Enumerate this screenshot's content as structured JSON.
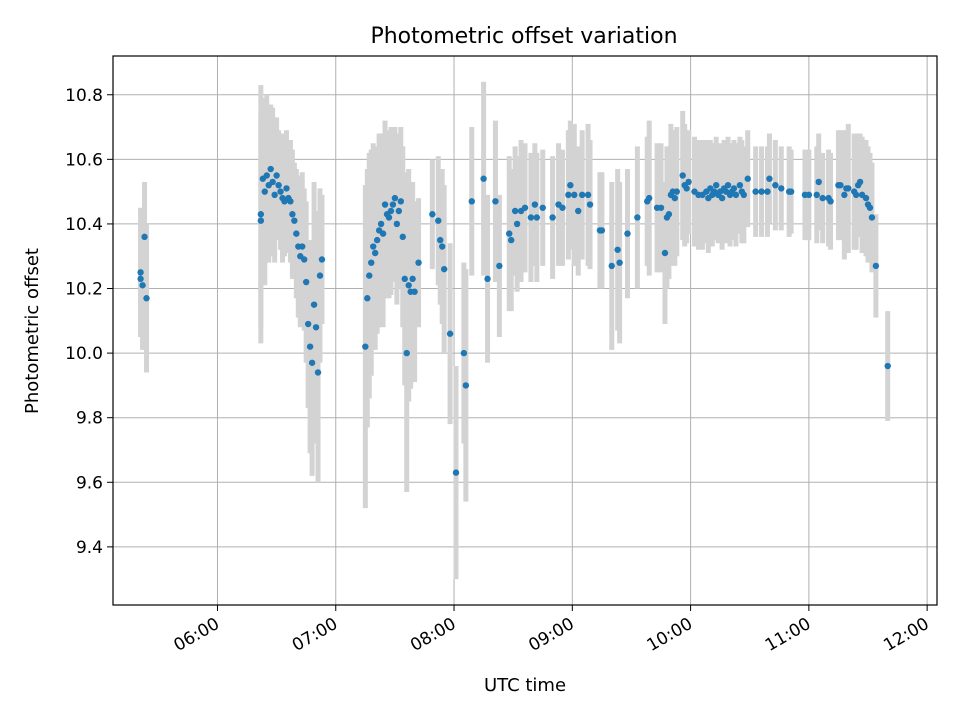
{
  "chart_data": {
    "type": "scatter",
    "title": "Photometric offset variation",
    "xlabel": "UTC time",
    "ylabel": "Photometric offset",
    "xlim": [
      "05:07",
      "12:05"
    ],
    "ylim": [
      9.22,
      10.92
    ],
    "xticks": [
      "06:00",
      "07:00",
      "08:00",
      "09:00",
      "10:00",
      "11:00",
      "12:00"
    ],
    "yticks": [
      9.4,
      9.6,
      9.8,
      10.0,
      10.2,
      10.4,
      10.6,
      10.8
    ],
    "grid": true,
    "colors": {
      "points": "#1f77b4",
      "errorbars": "#d3d3d3"
    },
    "points": [
      {
        "t": "05:21",
        "y": 10.25,
        "err": 0.2
      },
      {
        "t": "05:21",
        "y": 10.23,
        "err": 0.18
      },
      {
        "t": "05:22",
        "y": 10.21,
        "err": 0.2
      },
      {
        "t": "05:23",
        "y": 10.36,
        "err": 0.17
      },
      {
        "t": "05:24",
        "y": 10.17,
        "err": 0.23
      },
      {
        "t": "06:22",
        "y": 10.43,
        "err": 0.4
      },
      {
        "t": "06:22",
        "y": 10.41,
        "err": 0.33
      },
      {
        "t": "06:23",
        "y": 10.54,
        "err": 0.25
      },
      {
        "t": "06:24",
        "y": 10.5,
        "err": 0.29
      },
      {
        "t": "06:25",
        "y": 10.55,
        "err": 0.25
      },
      {
        "t": "06:26",
        "y": 10.52,
        "err": 0.24
      },
      {
        "t": "06:27",
        "y": 10.57,
        "err": 0.2
      },
      {
        "t": "06:28",
        "y": 10.53,
        "err": 0.23
      },
      {
        "t": "06:29",
        "y": 10.49,
        "err": 0.21
      },
      {
        "t": "06:30",
        "y": 10.55,
        "err": 0.18
      },
      {
        "t": "06:31",
        "y": 10.52,
        "err": 0.17
      },
      {
        "t": "06:32",
        "y": 10.5,
        "err": 0.18
      },
      {
        "t": "06:33",
        "y": 10.48,
        "err": 0.2
      },
      {
        "t": "06:34",
        "y": 10.47,
        "err": 0.17
      },
      {
        "t": "06:35",
        "y": 10.51,
        "err": 0.18
      },
      {
        "t": "06:36",
        "y": 10.48,
        "err": 0.17
      },
      {
        "t": "06:37",
        "y": 10.47,
        "err": 0.19
      },
      {
        "t": "06:38",
        "y": 10.43,
        "err": 0.2
      },
      {
        "t": "06:39",
        "y": 10.41,
        "err": 0.18
      },
      {
        "t": "06:40",
        "y": 10.37,
        "err": 0.2
      },
      {
        "t": "06:41",
        "y": 10.33,
        "err": 0.22
      },
      {
        "t": "06:42",
        "y": 10.3,
        "err": 0.22
      },
      {
        "t": "06:43",
        "y": 10.33,
        "err": 0.23
      },
      {
        "t": "06:44",
        "y": 10.29,
        "err": 0.22
      },
      {
        "t": "06:45",
        "y": 10.22,
        "err": 0.25
      },
      {
        "t": "06:46",
        "y": 10.09,
        "err": 0.26
      },
      {
        "t": "06:47",
        "y": 10.02,
        "err": 0.33
      },
      {
        "t": "06:48",
        "y": 9.97,
        "err": 0.35
      },
      {
        "t": "06:49",
        "y": 10.15,
        "err": 0.38
      },
      {
        "t": "06:50",
        "y": 10.08,
        "err": 0.36
      },
      {
        "t": "06:51",
        "y": 9.94,
        "err": 0.34
      },
      {
        "t": "06:52",
        "y": 10.24,
        "err": 0.27
      },
      {
        "t": "06:53",
        "y": 10.29,
        "err": 0.2
      },
      {
        "t": "07:15",
        "y": 10.02,
        "err": 0.5
      },
      {
        "t": "07:16",
        "y": 10.17,
        "err": 0.4
      },
      {
        "t": "07:17",
        "y": 10.24,
        "err": 0.38
      },
      {
        "t": "07:18",
        "y": 10.28,
        "err": 0.35
      },
      {
        "t": "07:19",
        "y": 10.33,
        "err": 0.32
      },
      {
        "t": "07:20",
        "y": 10.31,
        "err": 0.3
      },
      {
        "t": "07:21",
        "y": 10.35,
        "err": 0.29
      },
      {
        "t": "07:22",
        "y": 10.38,
        "err": 0.3
      },
      {
        "t": "07:23",
        "y": 10.4,
        "err": 0.28
      },
      {
        "t": "07:24",
        "y": 10.37,
        "err": 0.29
      },
      {
        "t": "07:25",
        "y": 10.46,
        "err": 0.26
      },
      {
        "t": "07:26",
        "y": 10.43,
        "err": 0.26
      },
      {
        "t": "07:27",
        "y": 10.42,
        "err": 0.25
      },
      {
        "t": "07:28",
        "y": 10.44,
        "err": 0.26
      },
      {
        "t": "07:29",
        "y": 10.46,
        "err": 0.24
      },
      {
        "t": "07:30",
        "y": 10.48,
        "err": 0.22
      },
      {
        "t": "07:31",
        "y": 10.4,
        "err": 0.25
      },
      {
        "t": "07:32",
        "y": 10.44,
        "err": 0.24
      },
      {
        "t": "07:33",
        "y": 10.47,
        "err": 0.23
      },
      {
        "t": "07:34",
        "y": 10.36,
        "err": 0.28
      },
      {
        "t": "07:35",
        "y": 10.23,
        "err": 0.33
      },
      {
        "t": "07:36",
        "y": 10.0,
        "err": 0.43
      },
      {
        "t": "07:37",
        "y": 10.21,
        "err": 0.36
      },
      {
        "t": "07:38",
        "y": 10.19,
        "err": 0.3
      },
      {
        "t": "07:39",
        "y": 10.23,
        "err": 0.3
      },
      {
        "t": "07:40",
        "y": 10.19,
        "err": 0.28
      },
      {
        "t": "07:42",
        "y": 10.28,
        "err": 0.2
      },
      {
        "t": "07:49",
        "y": 10.43,
        "err": 0.17
      },
      {
        "t": "07:52",
        "y": 10.41,
        "err": 0.2
      },
      {
        "t": "07:53",
        "y": 10.35,
        "err": 0.2
      },
      {
        "t": "07:54",
        "y": 10.33,
        "err": 0.24
      },
      {
        "t": "07:55",
        "y": 10.26,
        "err": 0.26
      },
      {
        "t": "07:58",
        "y": 10.06,
        "err": 0.28
      },
      {
        "t": "08:01",
        "y": 9.63,
        "err": 0.33
      },
      {
        "t": "08:05",
        "y": 10.0,
        "err": 0.28
      },
      {
        "t": "08:06",
        "y": 9.9,
        "err": 0.36
      },
      {
        "t": "08:09",
        "y": 10.47,
        "err": 0.23
      },
      {
        "t": "08:15",
        "y": 10.54,
        "err": 0.3
      },
      {
        "t": "08:17",
        "y": 10.23,
        "err": 0.26
      },
      {
        "t": "08:21",
        "y": 10.47,
        "err": 0.25
      },
      {
        "t": "08:23",
        "y": 10.27,
        "err": 0.22
      },
      {
        "t": "08:28",
        "y": 10.37,
        "err": 0.24
      },
      {
        "t": "08:29",
        "y": 10.35,
        "err": 0.22
      },
      {
        "t": "08:31",
        "y": 10.44,
        "err": 0.2
      },
      {
        "t": "08:32",
        "y": 10.4,
        "err": 0.21
      },
      {
        "t": "08:34",
        "y": 10.44,
        "err": 0.22
      },
      {
        "t": "08:36",
        "y": 10.45,
        "err": 0.2
      },
      {
        "t": "08:39",
        "y": 10.42,
        "err": 0.2
      },
      {
        "t": "08:41",
        "y": 10.46,
        "err": 0.19
      },
      {
        "t": "08:42",
        "y": 10.42,
        "err": 0.2
      },
      {
        "t": "08:45",
        "y": 10.45,
        "err": 0.18
      },
      {
        "t": "08:50",
        "y": 10.42,
        "err": 0.19
      },
      {
        "t": "08:53",
        "y": 10.46,
        "err": 0.19
      },
      {
        "t": "08:55",
        "y": 10.45,
        "err": 0.18
      },
      {
        "t": "08:58",
        "y": 10.49,
        "err": 0.2
      },
      {
        "t": "08:59",
        "y": 10.52,
        "err": 0.2
      },
      {
        "t": "09:01",
        "y": 10.49,
        "err": 0.22
      },
      {
        "t": "09:03",
        "y": 10.44,
        "err": 0.2
      },
      {
        "t": "09:05",
        "y": 10.49,
        "err": 0.2
      },
      {
        "t": "09:08",
        "y": 10.49,
        "err": 0.22
      },
      {
        "t": "09:09",
        "y": 10.46,
        "err": 0.2
      },
      {
        "t": "09:14",
        "y": 10.38,
        "err": 0.18
      },
      {
        "t": "09:15",
        "y": 10.38,
        "err": 0.18
      },
      {
        "t": "09:20",
        "y": 10.27,
        "err": 0.26
      },
      {
        "t": "09:23",
        "y": 10.32,
        "err": 0.25
      },
      {
        "t": "09:24",
        "y": 10.28,
        "err": 0.25
      },
      {
        "t": "09:28",
        "y": 10.37,
        "err": 0.2
      },
      {
        "t": "09:33",
        "y": 10.42,
        "err": 0.22
      },
      {
        "t": "09:38",
        "y": 10.47,
        "err": 0.2
      },
      {
        "t": "09:39",
        "y": 10.48,
        "err": 0.24
      },
      {
        "t": "09:43",
        "y": 10.45,
        "err": 0.2
      },
      {
        "t": "09:45",
        "y": 10.45,
        "err": 0.2
      },
      {
        "t": "09:47",
        "y": 10.31,
        "err": 0.22
      },
      {
        "t": "09:48",
        "y": 10.42,
        "err": 0.22
      },
      {
        "t": "09:49",
        "y": 10.43,
        "err": 0.2
      },
      {
        "t": "09:50",
        "y": 10.49,
        "err": 0.22
      },
      {
        "t": "09:51",
        "y": 10.5,
        "err": 0.19
      },
      {
        "t": "09:52",
        "y": 10.48,
        "err": 0.21
      },
      {
        "t": "09:53",
        "y": 10.5,
        "err": 0.2
      },
      {
        "t": "09:56",
        "y": 10.55,
        "err": 0.2
      },
      {
        "t": "09:57",
        "y": 10.52,
        "err": 0.19
      },
      {
        "t": "09:58",
        "y": 10.51,
        "err": 0.17
      },
      {
        "t": "09:59",
        "y": 10.53,
        "err": 0.16
      },
      {
        "t": "10:02",
        "y": 10.5,
        "err": 0.17
      },
      {
        "t": "10:04",
        "y": 10.49,
        "err": 0.17
      },
      {
        "t": "10:06",
        "y": 10.49,
        "err": 0.17
      },
      {
        "t": "10:08",
        "y": 10.5,
        "err": 0.16
      },
      {
        "t": "10:09",
        "y": 10.48,
        "err": 0.17
      },
      {
        "t": "10:10",
        "y": 10.51,
        "err": 0.15
      },
      {
        "t": "10:11",
        "y": 10.49,
        "err": 0.16
      },
      {
        "t": "10:12",
        "y": 10.5,
        "err": 0.15
      },
      {
        "t": "10:13",
        "y": 10.52,
        "err": 0.15
      },
      {
        "t": "10:14",
        "y": 10.49,
        "err": 0.15
      },
      {
        "t": "10:15",
        "y": 10.5,
        "err": 0.15
      },
      {
        "t": "10:16",
        "y": 10.48,
        "err": 0.16
      },
      {
        "t": "10:17",
        "y": 10.51,
        "err": 0.15
      },
      {
        "t": "10:18",
        "y": 10.5,
        "err": 0.16
      },
      {
        "t": "10:19",
        "y": 10.52,
        "err": 0.15
      },
      {
        "t": "10:20",
        "y": 10.49,
        "err": 0.16
      },
      {
        "t": "10:21",
        "y": 10.5,
        "err": 0.15
      },
      {
        "t": "10:22",
        "y": 10.51,
        "err": 0.15
      },
      {
        "t": "10:23",
        "y": 10.49,
        "err": 0.16
      },
      {
        "t": "10:25",
        "y": 10.52,
        "err": 0.15
      },
      {
        "t": "10:26",
        "y": 10.5,
        "err": 0.16
      },
      {
        "t": "10:27",
        "y": 10.49,
        "err": 0.15
      },
      {
        "t": "10:29",
        "y": 10.54,
        "err": 0.15
      },
      {
        "t": "10:33",
        "y": 10.5,
        "err": 0.14
      },
      {
        "t": "10:36",
        "y": 10.5,
        "err": 0.14
      },
      {
        "t": "10:39",
        "y": 10.5,
        "err": 0.14
      },
      {
        "t": "10:40",
        "y": 10.54,
        "err": 0.14
      },
      {
        "t": "10:43",
        "y": 10.52,
        "err": 0.14
      },
      {
        "t": "10:46",
        "y": 10.51,
        "err": 0.13
      },
      {
        "t": "10:50",
        "y": 10.5,
        "err": 0.14
      },
      {
        "t": "10:51",
        "y": 10.5,
        "err": 0.13
      },
      {
        "t": "10:58",
        "y": 10.49,
        "err": 0.14
      },
      {
        "t": "11:00",
        "y": 10.49,
        "err": 0.14
      },
      {
        "t": "11:04",
        "y": 10.49,
        "err": 0.15
      },
      {
        "t": "11:05",
        "y": 10.53,
        "err": 0.15
      },
      {
        "t": "11:07",
        "y": 10.48,
        "err": 0.14
      },
      {
        "t": "11:10",
        "y": 10.48,
        "err": 0.15
      },
      {
        "t": "11:11",
        "y": 10.47,
        "err": 0.15
      },
      {
        "t": "11:15",
        "y": 10.52,
        "err": 0.17
      },
      {
        "t": "11:16",
        "y": 10.52,
        "err": 0.17
      },
      {
        "t": "11:18",
        "y": 10.49,
        "err": 0.2
      },
      {
        "t": "11:19",
        "y": 10.51,
        "err": 0.18
      },
      {
        "t": "11:20",
        "y": 10.51,
        "err": 0.2
      },
      {
        "t": "11:23",
        "y": 10.5,
        "err": 0.18
      },
      {
        "t": "11:24",
        "y": 10.49,
        "err": 0.17
      },
      {
        "t": "11:25",
        "y": 10.52,
        "err": 0.16
      },
      {
        "t": "11:26",
        "y": 10.53,
        "err": 0.15
      },
      {
        "t": "11:27",
        "y": 10.49,
        "err": 0.18
      },
      {
        "t": "11:29",
        "y": 10.48,
        "err": 0.18
      },
      {
        "t": "11:30",
        "y": 10.46,
        "err": 0.18
      },
      {
        "t": "11:31",
        "y": 10.45,
        "err": 0.17
      },
      {
        "t": "11:32",
        "y": 10.42,
        "err": 0.17
      },
      {
        "t": "11:34",
        "y": 10.27,
        "err": 0.16
      },
      {
        "t": "11:40",
        "y": 9.96,
        "err": 0.17
      }
    ]
  }
}
